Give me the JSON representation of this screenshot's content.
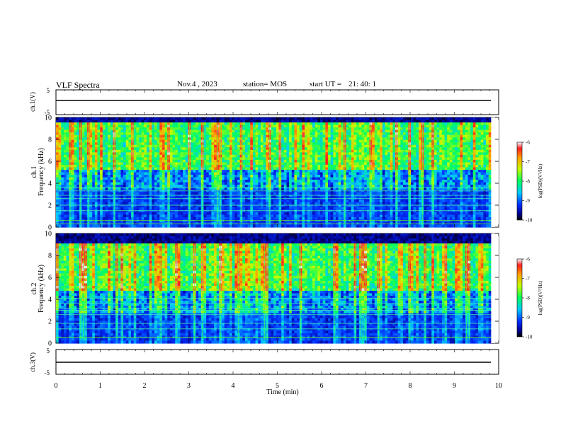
{
  "header": {
    "title": "VLF Spectra",
    "date": "Nov.4 , 2023",
    "station": "station= MOS",
    "start_ut_label": "start UT =",
    "start_ut_value": "21: 40: 1"
  },
  "chart_data": [
    {
      "type": "line",
      "name": "ch.1 waveform",
      "ylabel": "ch.1(V)",
      "ylim": [
        -5,
        5
      ],
      "yticks": [
        "5",
        "-5"
      ],
      "x": [
        0,
        9.83
      ],
      "values": [
        0,
        0
      ]
    },
    {
      "type": "heatmap",
      "name": "ch.1 spectrogram",
      "ylabel": "ch.1\nFrequency (kHz)",
      "ylabel_lines": [
        "ch.1",
        "Frequency (kHz)"
      ],
      "xlim": [
        0,
        10
      ],
      "ylim": [
        0,
        10
      ],
      "yticks": [
        "0",
        "2",
        "4",
        "6",
        "8",
        "10"
      ],
      "data_end_min": 9.83,
      "colorbar": {
        "label": "log(PSD)(V²/Hz)",
        "range": [
          -10,
          -6
        ],
        "ticks": [
          "-6",
          "-7",
          "-8",
          "-9",
          "-10"
        ]
      },
      "emission_band_khz": [
        5.5,
        9.0
      ],
      "constant_lines_khz": [
        0.3,
        0.6,
        1.5,
        2.0,
        2.6,
        2.9,
        3.3,
        3.6
      ]
    },
    {
      "type": "heatmap",
      "name": "ch.2 spectrogram",
      "ylabel": "ch.2\nFrequency (kHz)",
      "ylabel_lines": [
        "ch.2",
        "Frequency (kHz)"
      ],
      "xlim": [
        0,
        10
      ],
      "ylim": [
        0,
        10
      ],
      "yticks": [
        "0",
        "2",
        "4",
        "6",
        "8",
        "10"
      ],
      "data_end_min": 9.83,
      "colorbar": {
        "label": "log(PSD)(V²/Hz)",
        "range": [
          -10,
          -6
        ],
        "ticks": [
          "-6",
          "-7",
          "-8",
          "-9",
          "-10"
        ]
      },
      "emission_band_khz": [
        5.0,
        8.5
      ],
      "constant_lines_khz": [
        0.5,
        1.3,
        1.8,
        2.6,
        3.0,
        3.2,
        3.6,
        4.1
      ]
    },
    {
      "type": "line",
      "name": "ch.3 waveform",
      "ylabel": "ch.3(V)",
      "ylim": [
        -5,
        5
      ],
      "yticks": [
        "5",
        "-5"
      ],
      "x": [
        0,
        9.83
      ],
      "values": [
        0,
        0
      ]
    }
  ],
  "xaxis": {
    "label": "Time (min)",
    "ticks": [
      "0",
      "1",
      "2",
      "3",
      "4",
      "5",
      "6",
      "7",
      "8",
      "9",
      "10"
    ]
  }
}
